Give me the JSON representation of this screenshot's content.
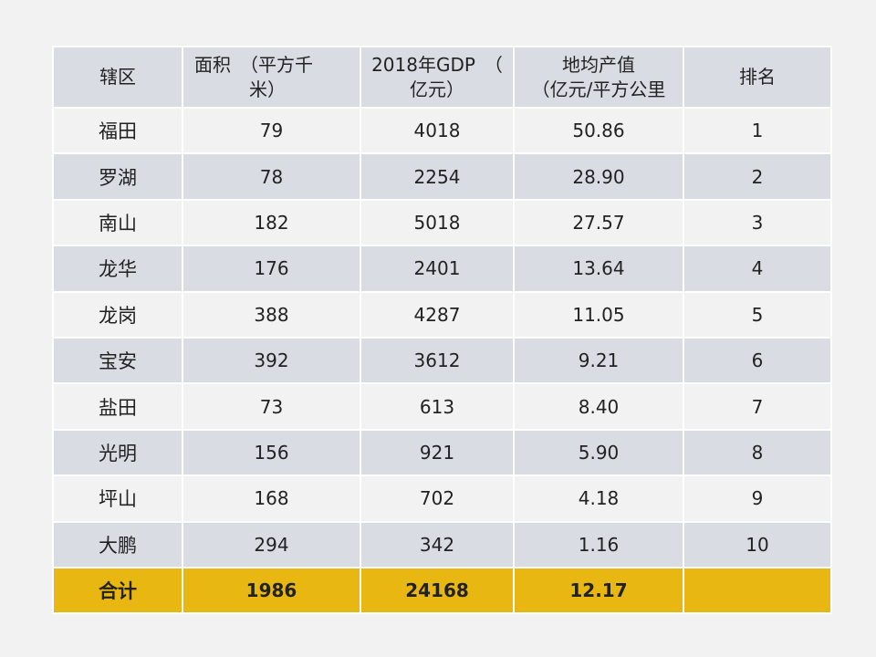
{
  "table": {
    "headers": {
      "district": "辖区",
      "area_line1": "面积　（平方千",
      "area_line2": "米）",
      "gdp_line1": "2018年GDP　（",
      "gdp_line2": "亿元）",
      "density_line1": "地均产值",
      "density_line2": "（亿元/平方公里",
      "rank": "排名"
    },
    "rows": [
      {
        "district": "福田",
        "area": "79",
        "gdp": "4018",
        "density": "50.86",
        "rank": "1"
      },
      {
        "district": "罗湖",
        "area": "78",
        "gdp": "2254",
        "density": "28.90",
        "rank": "2"
      },
      {
        "district": "南山",
        "area": "182",
        "gdp": "5018",
        "density": "27.57",
        "rank": "3"
      },
      {
        "district": "龙华",
        "area": "176",
        "gdp": "2401",
        "density": "13.64",
        "rank": "4"
      },
      {
        "district": "龙岗",
        "area": "388",
        "gdp": "4287",
        "density": "11.05",
        "rank": "5"
      },
      {
        "district": "宝安",
        "area": "392",
        "gdp": "3612",
        "density": "9.21",
        "rank": "6"
      },
      {
        "district": "盐田",
        "area": "73",
        "gdp": "613",
        "density": "8.40",
        "rank": "7"
      },
      {
        "district": "光明",
        "area": "156",
        "gdp": "921",
        "density": "5.90",
        "rank": "8"
      },
      {
        "district": "坪山",
        "area": "168",
        "gdp": "702",
        "density": "4.18",
        "rank": "9"
      },
      {
        "district": "大鹏",
        "area": "294",
        "gdp": "342",
        "density": "1.16",
        "rank": "10"
      }
    ],
    "total": {
      "district": "合计",
      "area": "1986",
      "gdp": "24168",
      "density": "12.17",
      "rank": ""
    }
  },
  "colors": {
    "background": "#f2f2f2",
    "row_dark": "#d9dde3",
    "row_light": "#f2f2f2",
    "total_highlight": "#e9b712"
  }
}
